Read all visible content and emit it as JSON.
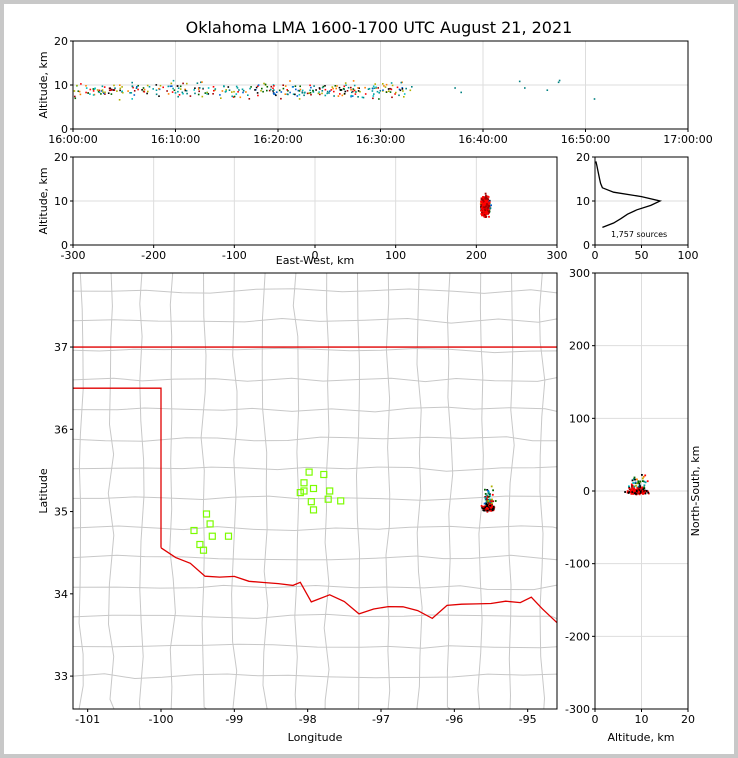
{
  "title": "Oklahoma LMA 1600-1700 UTC August 21, 2021",
  "colors": {
    "state_border": "#e00000",
    "county": "#c8c8c8",
    "station": "#7cfc00",
    "grid": "#dddddd",
    "histogram": "#000000"
  },
  "chart_data": [
    {
      "type": "scatter",
      "panel": "altitude-time",
      "xlabel": "",
      "ylabel": "Altitude, km",
      "xlim": [
        "16:00:00",
        "17:00:00"
      ],
      "ylim": [
        0,
        20
      ],
      "x_ticks": [
        "16:00:00",
        "16:10:00",
        "16:20:00",
        "16:30:00",
        "16:40:00",
        "16:50:00",
        "17:00:00"
      ],
      "y_ticks": [
        "0",
        "10",
        "20"
      ],
      "grid": true
    },
    {
      "type": "scatter",
      "panel": "altitude-eastwest",
      "xlabel": "East-West, km",
      "ylabel": "Altitude, km",
      "xlim": [
        -300,
        300
      ],
      "ylim": [
        0,
        20
      ],
      "x_ticks": [
        "-300",
        "-200",
        "-100",
        "0",
        "100",
        "200",
        "300"
      ],
      "y_ticks": [
        "0",
        "10",
        "20"
      ],
      "grid": true
    },
    {
      "type": "line",
      "panel": "altitude-histogram",
      "xlim": [
        0,
        100
      ],
      "ylim": [
        0,
        20
      ],
      "x_ticks": [
        "0",
        "50",
        "100"
      ],
      "y_ticks": [
        "0",
        "10",
        "20"
      ],
      "annotation": "1,757 sources",
      "profile": {
        "altitude": [
          4,
          5,
          6,
          7,
          8,
          9,
          10,
          11,
          12,
          13,
          14,
          15,
          16,
          17,
          18,
          19
        ],
        "count": [
          8,
          20,
          28,
          35,
          45,
          60,
          70,
          50,
          20,
          8,
          6,
          5,
          4,
          3,
          2,
          1
        ]
      },
      "grid": true
    },
    {
      "type": "scatter",
      "panel": "plan-view-map",
      "xlabel": "Longitude",
      "ylabel": "Latitude",
      "xlim": [
        -101.2,
        -94.6
      ],
      "ylim": [
        32.6,
        37.9
      ],
      "x_ticks": [
        "-101",
        "-100",
        "-99",
        "-98",
        "-97",
        "-96",
        "-95"
      ],
      "y_ticks": [
        "33",
        "34",
        "35",
        "36",
        "37"
      ],
      "stations": {
        "lon": [
          -97.98,
          -98.05,
          -98.1,
          -98.05,
          -97.92,
          -97.78,
          -97.7,
          -97.95,
          -97.72,
          -97.55,
          -97.92,
          -99.38,
          -99.33,
          -99.55,
          -99.3,
          -99.08,
          -99.47,
          -99.42
        ],
        "lat": [
          35.48,
          35.35,
          35.23,
          35.25,
          35.28,
          35.45,
          35.25,
          35.12,
          35.15,
          35.13,
          35.02,
          34.97,
          34.85,
          34.77,
          34.7,
          34.7,
          34.6,
          34.53
        ]
      },
      "grid": false
    },
    {
      "type": "scatter",
      "panel": "northsouth-altitude",
      "xlabel": "Altitude, km",
      "ylabel": "North-South, km",
      "xlim": [
        0,
        20
      ],
      "ylim": [
        -300,
        300
      ],
      "x_ticks": [
        "0",
        "10",
        "20"
      ],
      "y_ticks": [
        "-300",
        "-200",
        "-100",
        "0",
        "100",
        "200",
        "300"
      ],
      "grid": true
    }
  ]
}
